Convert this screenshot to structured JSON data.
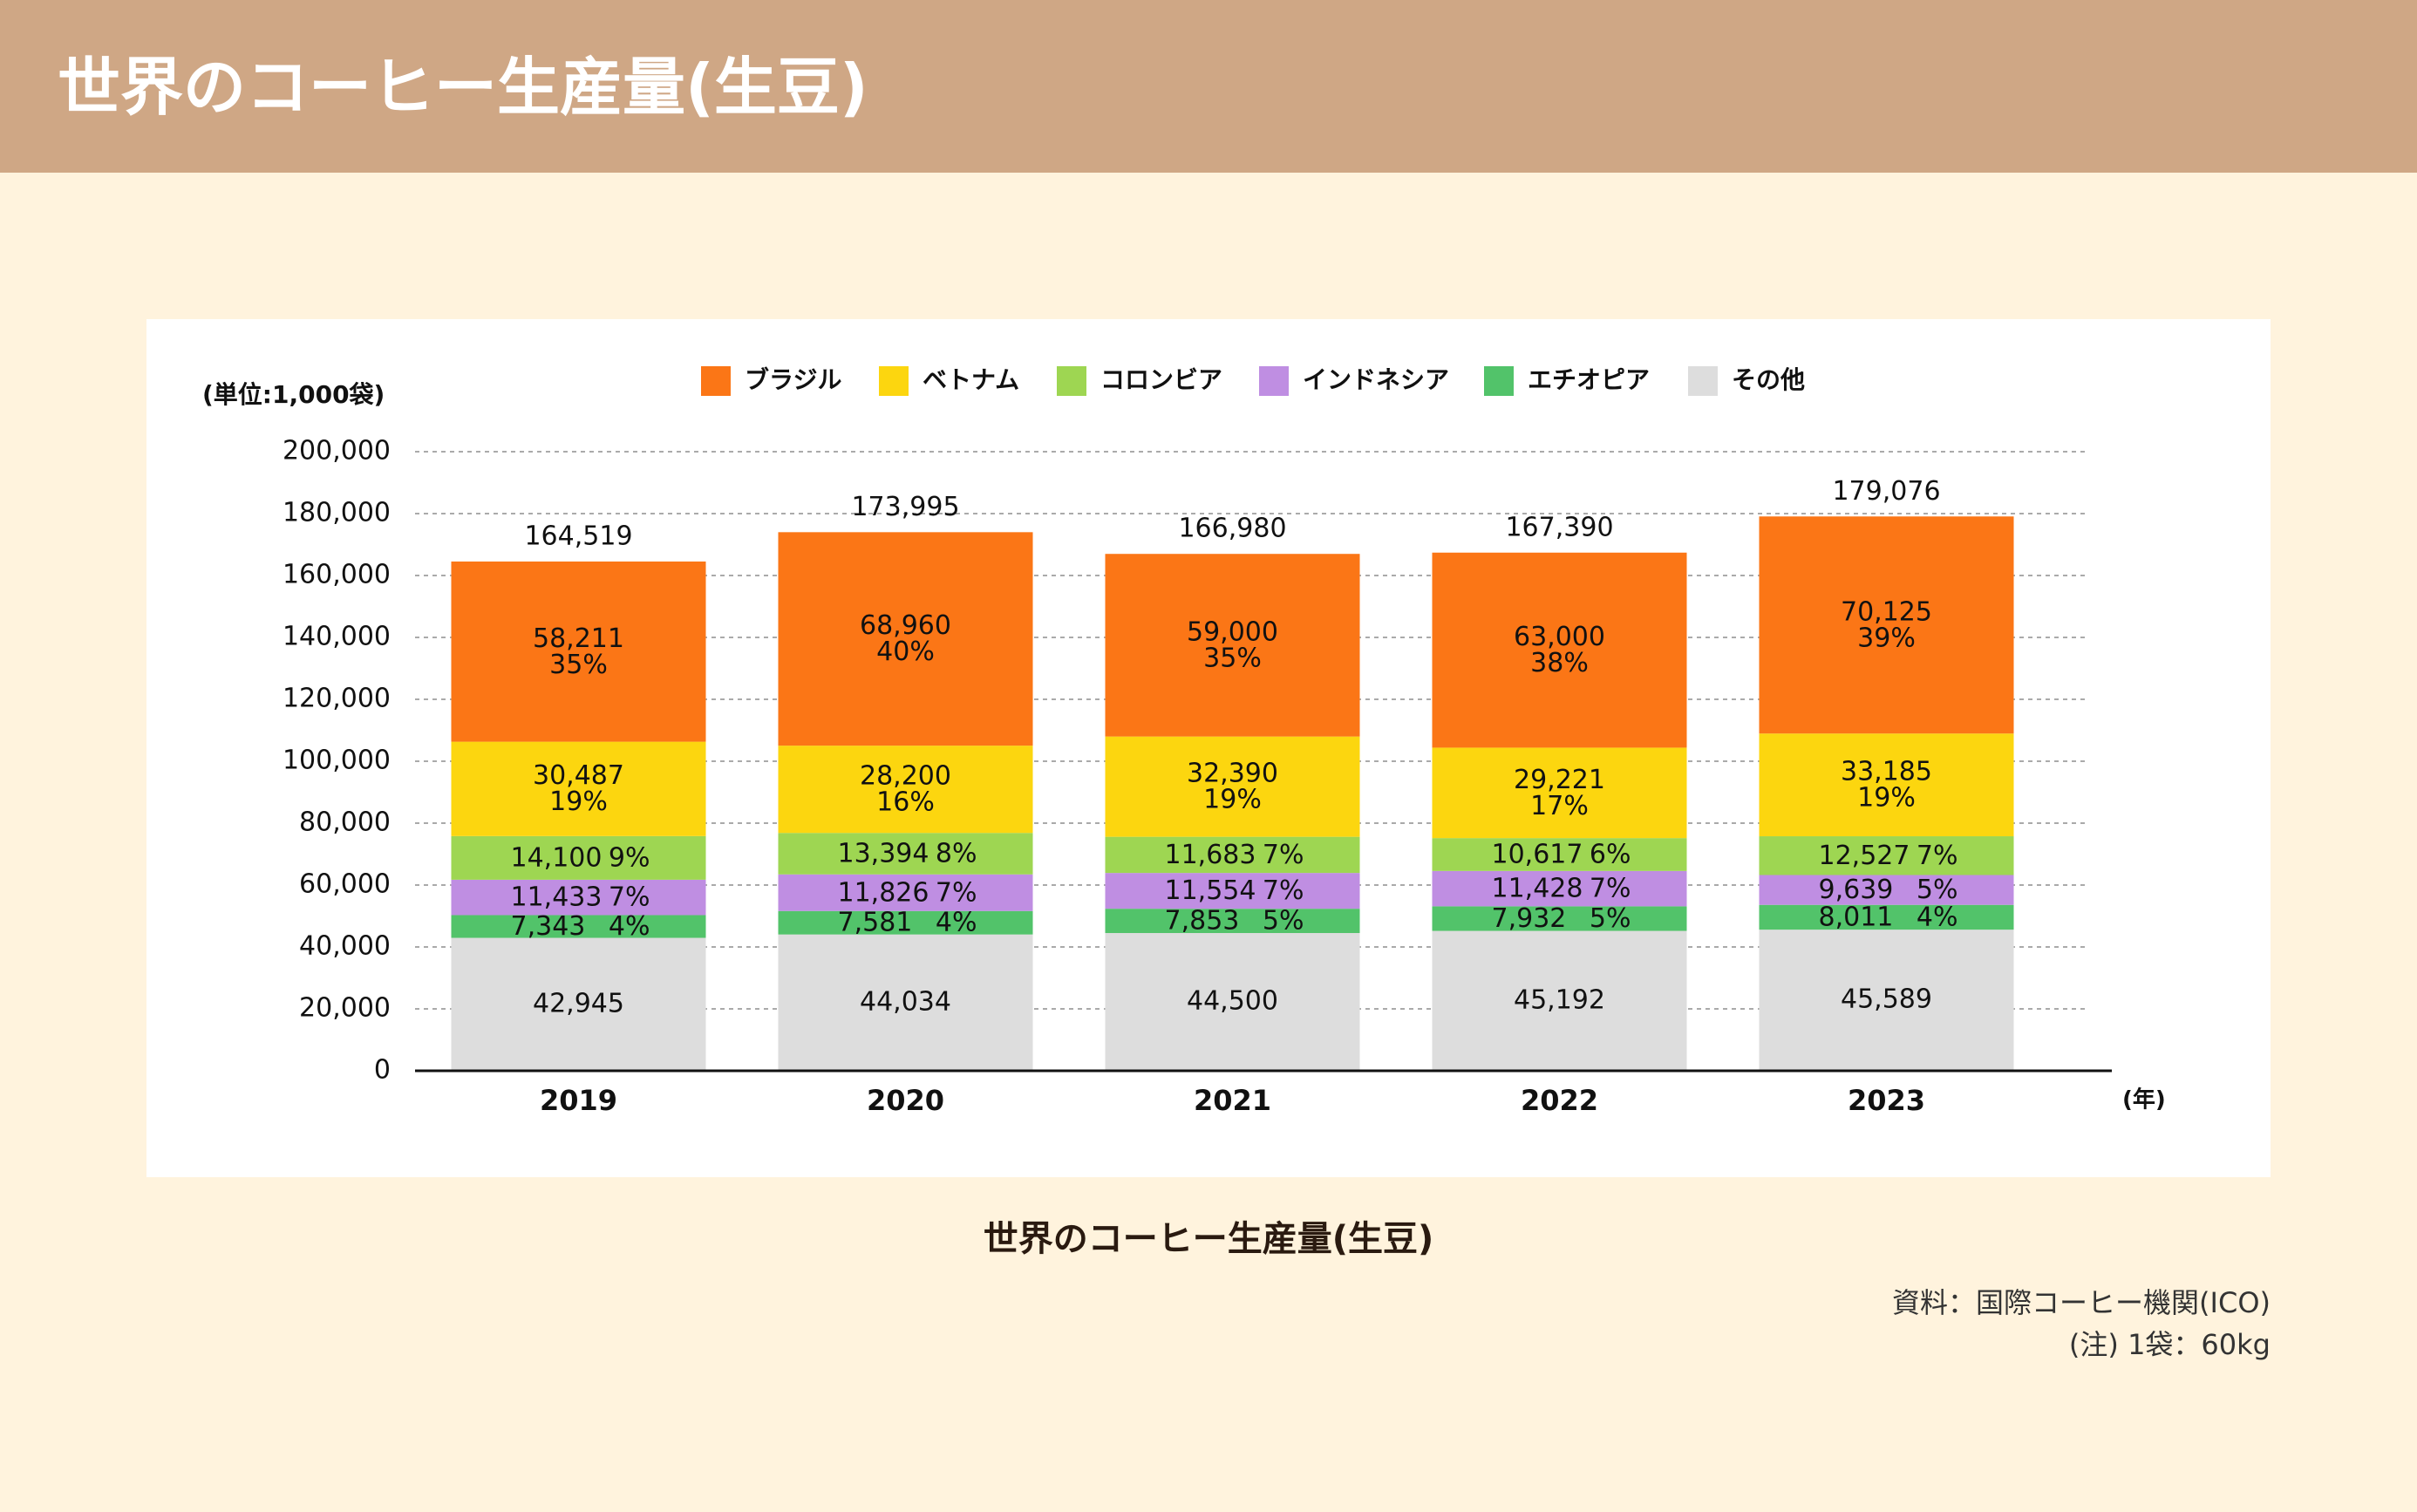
{
  "header": {
    "title": "世界のコーヒー生産量(生豆)"
  },
  "caption": "世界のコーヒー生産量(生豆)",
  "source": {
    "line1": "資料：国際コーヒー機関(ICO)",
    "line2": "(注) 1袋：60kg"
  },
  "chart_data": {
    "type": "bar",
    "stacked": true,
    "title": "",
    "ylabel": "(単位:1,000袋)",
    "xlabel": "(年)",
    "ylim": [
      0,
      200000
    ],
    "yticks": [
      0,
      20000,
      40000,
      60000,
      80000,
      100000,
      120000,
      140000,
      160000,
      180000,
      200000
    ],
    "ytick_labels": [
      "0",
      "20,000",
      "40,000",
      "60,000",
      "80,000",
      "100,000",
      "120,000",
      "140,000",
      "160,000",
      "180,000",
      "200,000"
    ],
    "grid": true,
    "legend_position": "top",
    "categories": [
      "2019",
      "2020",
      "2021",
      "2022",
      "2023"
    ],
    "totals": [
      164519,
      173995,
      166980,
      167390,
      179076
    ],
    "total_labels": [
      "164,519",
      "173,995",
      "166,980",
      "167,390",
      "179,076"
    ],
    "series": [
      {
        "name": "その他",
        "color": "#dddddd",
        "layout": "single",
        "values": [
          42945,
          44034,
          44500,
          45192,
          45589
        ],
        "labels": [
          "42,945",
          "44,034",
          "44,500",
          "45,192",
          "45,589"
        ],
        "pct_labels": [
          "",
          "",
          "",
          "",
          ""
        ]
      },
      {
        "name": "エチオピア",
        "color": "#52c36a",
        "layout": "inline",
        "values": [
          7343,
          7581,
          7853,
          7932,
          8011
        ],
        "labels": [
          "7,343",
          "7,581",
          "7,853",
          "7,932",
          "8,011"
        ],
        "pct_labels": [
          "4%",
          "4%",
          "5%",
          "5%",
          "4%"
        ]
      },
      {
        "name": "インドネシア",
        "color": "#bf8ee2",
        "layout": "inline",
        "values": [
          11433,
          11826,
          11554,
          11428,
          9639
        ],
        "labels": [
          "11,433",
          "11,826",
          "11,554",
          "11,428",
          "9,639"
        ],
        "pct_labels": [
          "7%",
          "7%",
          "7%",
          "7%",
          "5%"
        ]
      },
      {
        "name": "コロンビア",
        "color": "#9ed652",
        "layout": "inline",
        "values": [
          14100,
          13394,
          11683,
          10617,
          12527
        ],
        "labels": [
          "14,100",
          "13,394",
          "11,683",
          "10,617",
          "12,527"
        ],
        "pct_labels": [
          "9%",
          "8%",
          "7%",
          "6%",
          "7%"
        ]
      },
      {
        "name": "ベトナム",
        "color": "#fcd60f",
        "layout": "stacked",
        "values": [
          30487,
          28200,
          32390,
          29221,
          33185
        ],
        "labels": [
          "30,487",
          "28,200",
          "32,390",
          "29,221",
          "33,185"
        ],
        "pct_labels": [
          "19%",
          "16%",
          "19%",
          "17%",
          "19%"
        ]
      },
      {
        "name": "ブラジル",
        "color": "#fb7616",
        "layout": "stacked",
        "values": [
          58211,
          68960,
          59000,
          63000,
          70125
        ],
        "labels": [
          "58,211",
          "68,960",
          "59,000",
          "63,000",
          "70,125"
        ],
        "pct_labels": [
          "35%",
          "40%",
          "35%",
          "38%",
          "39%"
        ]
      }
    ],
    "legend_order": [
      "ブラジル",
      "ベトナム",
      "コロンビア",
      "インドネシア",
      "エチオピア",
      "その他"
    ]
  }
}
